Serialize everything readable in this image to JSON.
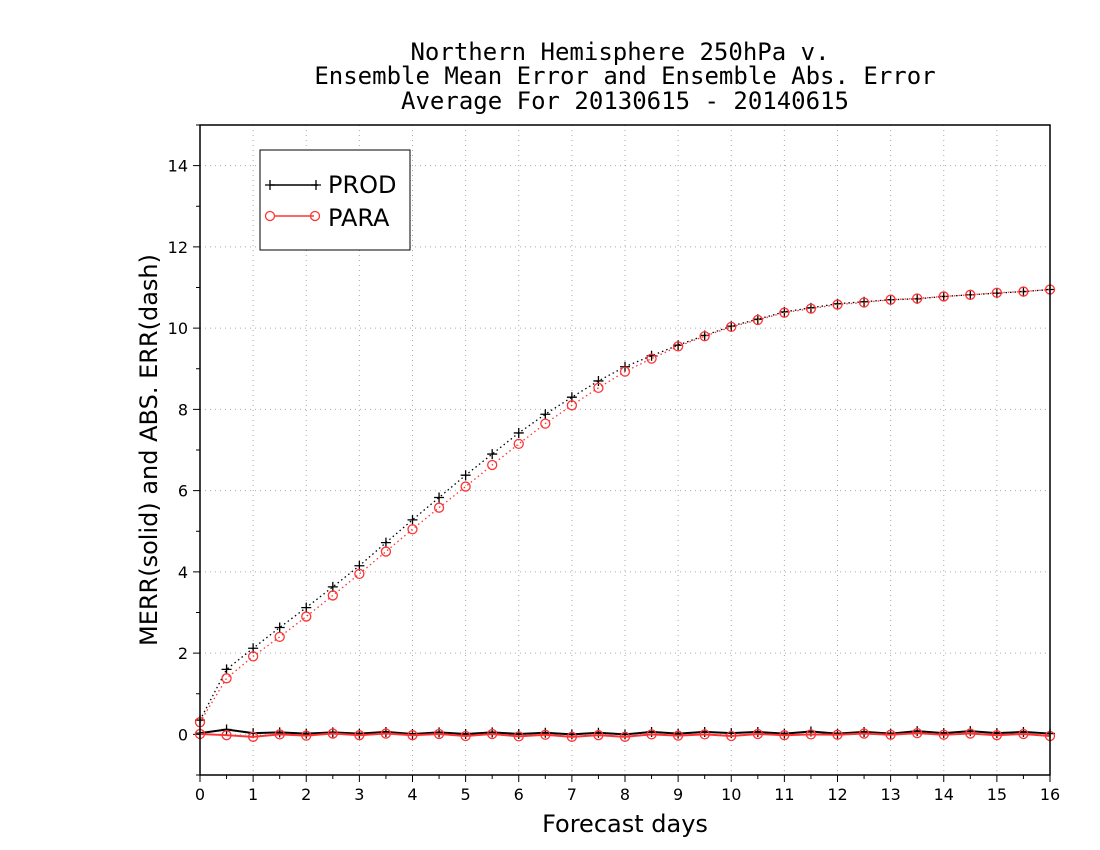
{
  "chart_data": {
    "type": "line",
    "title": [
      "Northern Hemisphere 250hPa v.",
      "Ensemble Mean Error and Ensemble Abs. Error",
      "Average For 20130615 - 20140615"
    ],
    "xlabel": "Forecast days",
    "ylabel": "MERR(solid) and ABS. ERR(dash)",
    "xlim": [
      0,
      16
    ],
    "ylim": [
      -1,
      15
    ],
    "x_ticks": [
      "0",
      "1",
      "2",
      "3",
      "4",
      "5",
      "6",
      "7",
      "8",
      "9",
      "10",
      "11",
      "12",
      "13",
      "14",
      "15",
      "16"
    ],
    "y_ticks": [
      "0",
      "2",
      "4",
      "6",
      "8",
      "10",
      "12",
      "14"
    ],
    "grid": true,
    "legend_position": "top-left",
    "x": [
      0,
      0.5,
      1,
      1.5,
      2,
      2.5,
      3,
      3.5,
      4,
      4.5,
      5,
      5.5,
      6,
      6.5,
      7,
      7.5,
      8,
      8.5,
      9,
      9.5,
      10,
      10.5,
      11,
      11.5,
      12,
      12.5,
      13,
      13.5,
      14,
      14.5,
      15,
      15.5,
      16
    ],
    "series": [
      {
        "name": "PROD",
        "color": "#000000",
        "marker": "plus",
        "style": "solid",
        "metric": "mean error",
        "values": [
          0.03,
          0.12,
          0.03,
          0.05,
          0.02,
          0.05,
          0.02,
          0.06,
          0.01,
          0.05,
          0.01,
          0.05,
          0.01,
          0.04,
          0.0,
          0.04,
          0.0,
          0.06,
          0.02,
          0.06,
          0.03,
          0.06,
          0.02,
          0.07,
          0.02,
          0.06,
          0.02,
          0.08,
          0.03,
          0.08,
          0.03,
          0.06,
          0.02
        ]
      },
      {
        "name": "PARA",
        "color": "#ff3333",
        "marker": "circle",
        "style": "solid",
        "metric": "mean error",
        "values": [
          0.01,
          -0.02,
          -0.06,
          0.0,
          -0.03,
          0.02,
          -0.02,
          0.02,
          -0.02,
          0.01,
          -0.04,
          0.01,
          -0.05,
          -0.01,
          -0.06,
          -0.02,
          -0.06,
          0.0,
          -0.03,
          0.0,
          -0.04,
          0.01,
          -0.02,
          0.0,
          -0.01,
          0.02,
          -0.01,
          0.03,
          -0.01,
          0.02,
          -0.02,
          0.01,
          -0.04
        ]
      },
      {
        "name": "PROD",
        "color": "#000000",
        "marker": "plus",
        "style": "dotted",
        "metric": "abs error",
        "values": [
          0.35,
          1.6,
          2.12,
          2.63,
          3.12,
          3.63,
          4.15,
          4.72,
          5.28,
          5.83,
          6.38,
          6.9,
          7.42,
          7.88,
          8.3,
          8.7,
          9.05,
          9.32,
          9.58,
          9.82,
          10.05,
          10.22,
          10.4,
          10.5,
          10.6,
          10.65,
          10.7,
          10.72,
          10.78,
          10.82,
          10.86,
          10.9,
          10.95
        ]
      },
      {
        "name": "PARA",
        "color": "#ff3333",
        "marker": "circle",
        "style": "dotted",
        "metric": "abs error",
        "values": [
          0.3,
          1.38,
          1.92,
          2.4,
          2.9,
          3.42,
          3.95,
          4.5,
          5.05,
          5.58,
          6.1,
          6.63,
          7.15,
          7.65,
          8.1,
          8.53,
          8.93,
          9.25,
          9.55,
          9.8,
          10.03,
          10.2,
          10.38,
          10.48,
          10.58,
          10.63,
          10.7,
          10.73,
          10.78,
          10.82,
          10.87,
          10.9,
          10.95
        ]
      }
    ]
  }
}
